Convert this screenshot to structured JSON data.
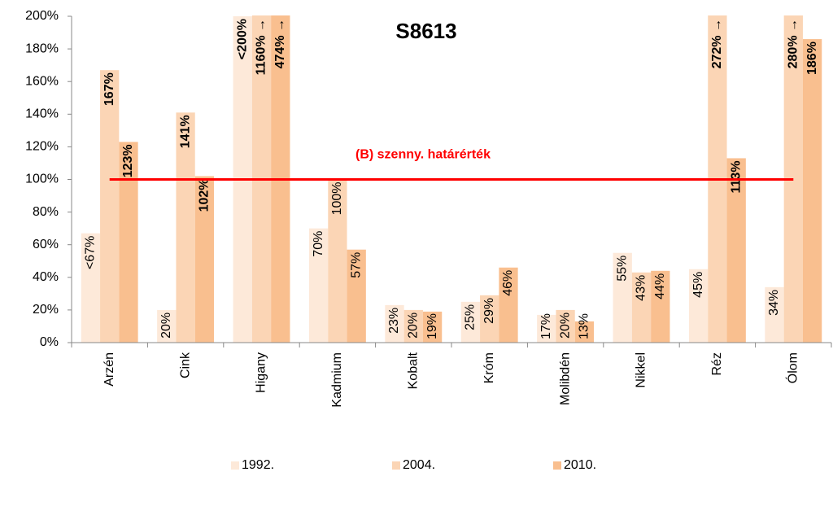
{
  "chart_data": {
    "type": "bar",
    "title": "S8613",
    "categories": [
      "Arzén",
      "Cink",
      "Higany",
      "Kadmium",
      "Kobalt",
      "Króm",
      "Molibdén",
      "Nikkel",
      "Réz",
      "Ólom"
    ],
    "series": [
      {
        "name": "1992.",
        "color": "#fde9d9",
        "values": [
          67,
          20,
          200,
          70,
          23,
          25,
          17,
          55,
          45,
          34
        ],
        "value_labels": [
          "<67%",
          "20%",
          "<200%",
          "70%",
          "23%",
          "25%",
          "17%",
          "55%",
          "45%",
          "34%"
        ]
      },
      {
        "name": "2004.",
        "color": "#fbd5b5",
        "values": [
          167,
          141,
          1160,
          100,
          20,
          29,
          20,
          43,
          272,
          280
        ],
        "value_labels": [
          "167%",
          "141%",
          "1160% →",
          "100%",
          "20%",
          "29%",
          "20%",
          "43%",
          "272% →",
          "280% →"
        ]
      },
      {
        "name": "2010.",
        "color": "#f9bf8f",
        "values": [
          123,
          102,
          474,
          57,
          19,
          46,
          13,
          44,
          113,
          186
        ],
        "value_labels": [
          "123%",
          "102%",
          "474% →",
          "57%",
          "19%",
          "46%",
          "13%",
          "44%",
          "113%",
          "186%"
        ]
      }
    ],
    "threshold": {
      "value": 100,
      "label": "(B) szenny. határérték",
      "color": "#ff0000"
    },
    "ylim": [
      0,
      200
    ],
    "yticks": [
      {
        "value": 0,
        "label": "0%"
      },
      {
        "value": 20,
        "label": "20%"
      },
      {
        "value": 40,
        "label": "40%"
      },
      {
        "value": 60,
        "label": "60%"
      },
      {
        "value": 80,
        "label": "80%"
      },
      {
        "value": 100,
        "label": "100%"
      },
      {
        "value": 120,
        "label": "120%"
      },
      {
        "value": 140,
        "label": "140%"
      },
      {
        "value": 160,
        "label": "160%"
      },
      {
        "value": 180,
        "label": "180%"
      },
      {
        "value": 200,
        "label": "200%"
      }
    ],
    "legend": "bottom",
    "grid": false
  }
}
